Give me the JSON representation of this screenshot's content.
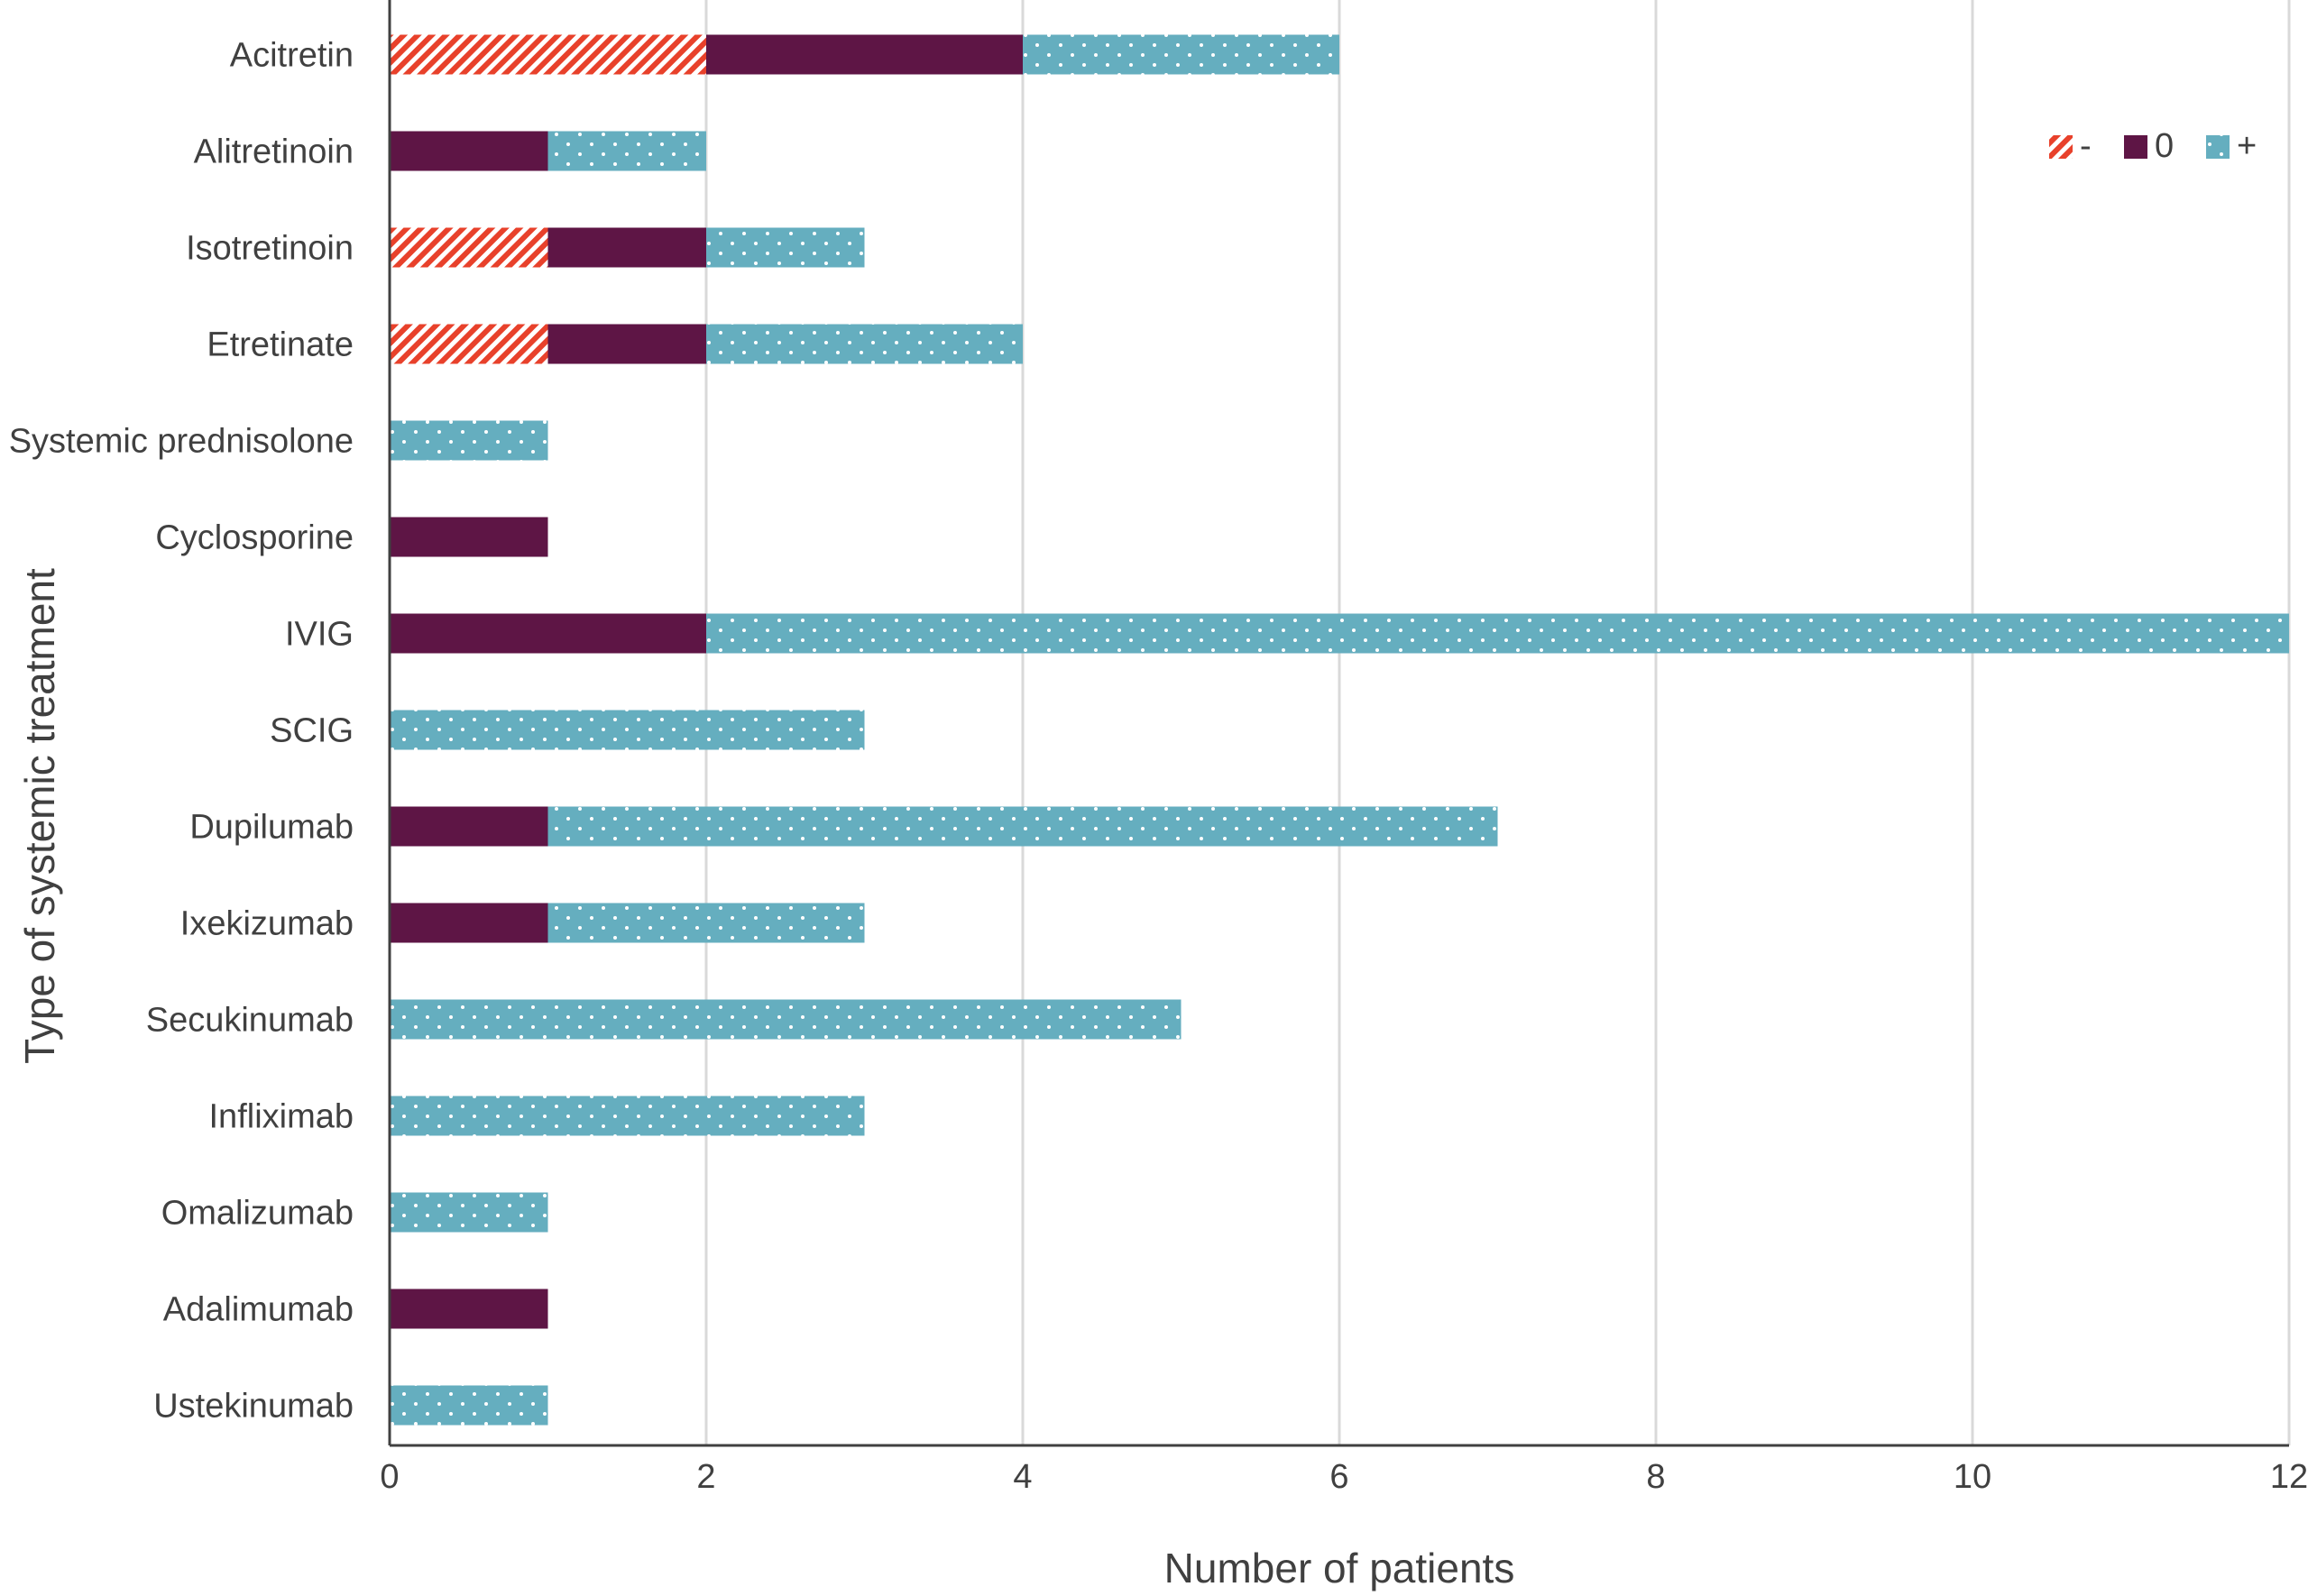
{
  "chart_data": {
    "type": "bar",
    "orientation": "horizontal",
    "stacked": true,
    "title": "",
    "xlabel": "Number of patients",
    "ylabel": "Type of systemic treatment",
    "xlim": [
      0,
      12
    ],
    "xticks": [
      0,
      2,
      4,
      6,
      8,
      10,
      12
    ],
    "grid": true,
    "legend_position": "top-right",
    "categories": [
      "Acitretin",
      "Alitretinoin",
      "Isotretinoin",
      "Etretinate",
      "Systemic prednisolone",
      "Cyclosporine",
      "IVIG",
      "SCIG",
      "Dupilumab",
      "Ixekizumab",
      "Secukinumab",
      "Infliximab",
      "Omalizumab",
      "Adalimumab",
      "Ustekinumab"
    ],
    "series": [
      {
        "name": "-",
        "color": "#e8412b",
        "pattern": "hatch",
        "values": [
          2,
          0,
          1,
          1,
          0,
          0,
          0,
          0,
          0,
          0,
          0,
          0,
          0,
          0,
          0
        ]
      },
      {
        "name": "0",
        "color": "#5e1545",
        "pattern": "solid",
        "values": [
          2,
          1,
          1,
          1,
          0,
          1,
          2,
          0,
          1,
          1,
          0,
          0,
          0,
          1,
          0
        ]
      },
      {
        "name": "+",
        "color": "#65aebf",
        "pattern": "dots",
        "values": [
          2,
          1,
          1,
          2,
          1,
          0,
          10,
          3,
          6,
          2,
          5,
          3,
          1,
          0,
          1
        ]
      }
    ]
  }
}
